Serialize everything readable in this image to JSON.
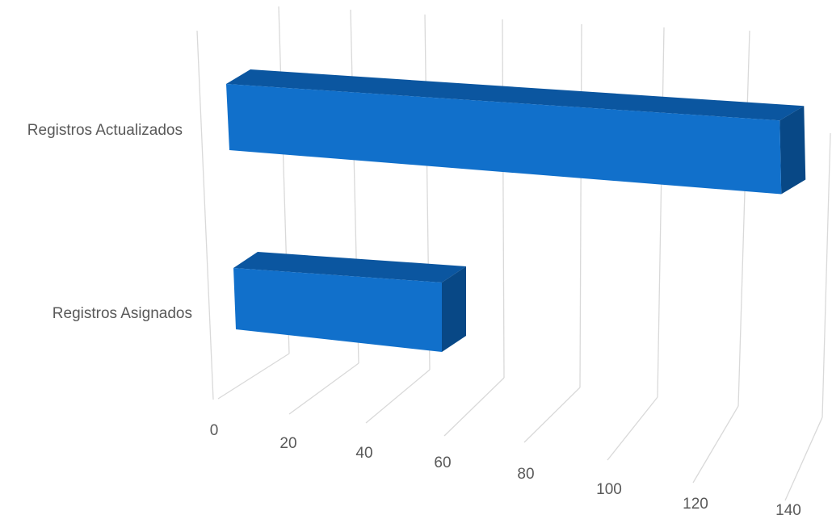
{
  "chart_data": {
    "type": "bar",
    "orientation": "horizontal",
    "style": "3d",
    "categories": [
      "Registros Actualizados",
      "Registros Asignados"
    ],
    "values": [
      142,
      55
    ],
    "xlim": [
      0,
      140
    ],
    "x_ticks": [
      "0",
      "20",
      "40",
      "60",
      "80",
      "100",
      "120",
      "140"
    ],
    "grid": true,
    "legend": "none",
    "colors": {
      "bar_front": "#1170CB",
      "bar_top": "#0B56A0",
      "bar_side": "#084886",
      "grid": "#d9d9d9",
      "text": "#595959"
    }
  }
}
